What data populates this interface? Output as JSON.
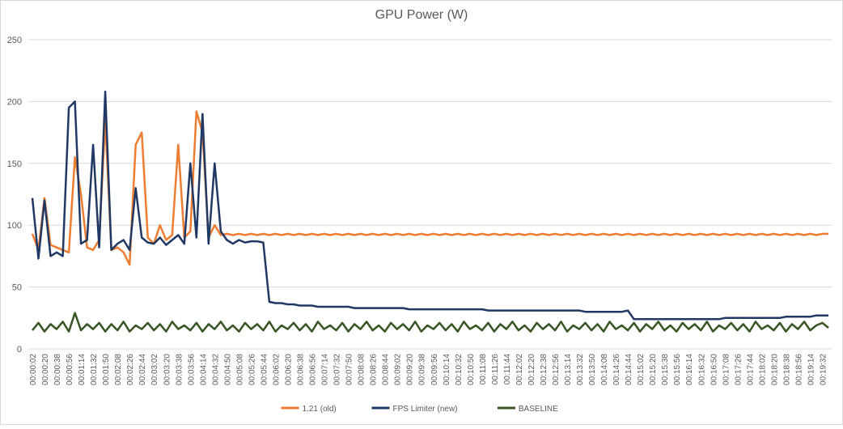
{
  "chart_data": {
    "type": "line",
    "title": "GPU Power (W)",
    "categories": [
      "00:00:02",
      null,
      "00:00:20",
      null,
      "00:00:38",
      null,
      "00:00:56",
      null,
      "00:01:14",
      null,
      "00:01:32",
      null,
      "00:01:50",
      null,
      "00:02:08",
      null,
      "00:02:26",
      null,
      "00:02:44",
      null,
      "00:03:02",
      null,
      "00:03:20",
      null,
      "00:03:38",
      null,
      "00:03:56",
      null,
      "00:04:14",
      null,
      "00:04:32",
      null,
      "00:04:50",
      null,
      "00:05:08",
      null,
      "00:05:26",
      null,
      "00:05:44",
      null,
      "00:06:02",
      null,
      "00:06:20",
      null,
      "00:06:38",
      null,
      "00:06:56",
      null,
      "00:07:14",
      null,
      "00:07:32",
      null,
      "00:07:50",
      null,
      "00:08:08",
      null,
      "00:08:26",
      null,
      "00:08:44",
      null,
      "00:09:02",
      null,
      "00:09:20",
      null,
      "00:09:38",
      null,
      "00:09:56",
      null,
      "00:10:14",
      null,
      "00:10:32",
      null,
      "00:10:50",
      null,
      "00:11:08",
      null,
      "00:11:26",
      null,
      "00:11:44",
      null,
      "00:12:02",
      null,
      "00:12:20",
      null,
      "00:12:38",
      null,
      "00:12:56",
      null,
      "00:13:14",
      null,
      "00:13:32",
      null,
      "00:13:50",
      null,
      "00:14:08",
      null,
      "00:14:26",
      null,
      "00:14:44",
      null,
      "00:15:02",
      null,
      "00:15:20",
      null,
      "00:15:38",
      null,
      "00:15:56",
      null,
      "00:16:14",
      null,
      "00:16:32",
      null,
      "00:16:50",
      null,
      "00:17:08",
      null,
      "00:17:26",
      null,
      "00:17:44",
      null,
      "00:18:02",
      null,
      "00:18:20",
      null,
      "00:18:38",
      null,
      "00:18:56",
      null,
      "00:19:14",
      null,
      "00:19:32",
      null
    ],
    "series": [
      {
        "name": "1.21 (old)",
        "color": "#ed7d31",
        "values": [
          93,
          80,
          122,
          84,
          82,
          80,
          78,
          155,
          125,
          82,
          80,
          88,
          185,
          80,
          82,
          78,
          68,
          165,
          175,
          90,
          85,
          100,
          88,
          92,
          165,
          90,
          95,
          192,
          175,
          90,
          100,
          92,
          93,
          92,
          93,
          92,
          93,
          92,
          93,
          92,
          93,
          92,
          93,
          92,
          93,
          92,
          93,
          92,
          93,
          92,
          93,
          92,
          93,
          92,
          93,
          92,
          93,
          92,
          93,
          92,
          93,
          92,
          93,
          92,
          93,
          92,
          93,
          92,
          93,
          92,
          93,
          92,
          93,
          92,
          93,
          92,
          93,
          92,
          93,
          92,
          93,
          92,
          93,
          92,
          93,
          92,
          93,
          92,
          93,
          92,
          93,
          92,
          93,
          92,
          93,
          92,
          93,
          92,
          93,
          92,
          93,
          92,
          93,
          92,
          93,
          92,
          93,
          92,
          93,
          92,
          93,
          92,
          93,
          92,
          93,
          92,
          93,
          92,
          93,
          92,
          93,
          92,
          93,
          92,
          93,
          92,
          93,
          92,
          93,
          92,
          93,
          93
        ]
      },
      {
        "name": "FPS Limiter (new)",
        "color": "#203864",
        "values": [
          122,
          73,
          120,
          75,
          78,
          75,
          195,
          200,
          85,
          88,
          165,
          82,
          208,
          80,
          85,
          88,
          80,
          130,
          90,
          86,
          85,
          90,
          84,
          88,
          92,
          85,
          150,
          90,
          190,
          85,
          150,
          95,
          88,
          85,
          88,
          86,
          87,
          87,
          86,
          38,
          37,
          37,
          36,
          36,
          35,
          35,
          35,
          34,
          34,
          34,
          34,
          34,
          34,
          33,
          33,
          33,
          33,
          33,
          33,
          33,
          33,
          33,
          32,
          32,
          32,
          32,
          32,
          32,
          32,
          32,
          32,
          32,
          32,
          32,
          32,
          31,
          31,
          31,
          31,
          31,
          31,
          31,
          31,
          31,
          31,
          31,
          31,
          31,
          31,
          31,
          31,
          30,
          30,
          30,
          30,
          30,
          30,
          30,
          31,
          24,
          24,
          24,
          24,
          24,
          24,
          24,
          24,
          24,
          24,
          24,
          24,
          24,
          24,
          24,
          25,
          25,
          25,
          25,
          25,
          25,
          25,
          25,
          25,
          25,
          26,
          26,
          26,
          26,
          26,
          27,
          27,
          27
        ]
      },
      {
        "name": "BASELINE",
        "color": "#375623",
        "values": [
          15,
          21,
          14,
          20,
          16,
          22,
          14,
          29,
          15,
          20,
          16,
          21,
          14,
          20,
          15,
          22,
          14,
          19,
          16,
          21,
          15,
          20,
          14,
          22,
          16,
          19,
          15,
          21,
          14,
          20,
          16,
          22,
          15,
          19,
          14,
          21,
          16,
          20,
          15,
          22,
          14,
          19,
          16,
          21,
          15,
          20,
          14,
          22,
          16,
          19,
          15,
          21,
          14,
          20,
          16,
          22,
          15,
          19,
          14,
          21,
          16,
          20,
          15,
          22,
          14,
          19,
          16,
          21,
          15,
          20,
          14,
          22,
          16,
          19,
          15,
          21,
          14,
          20,
          16,
          22,
          15,
          19,
          14,
          21,
          16,
          20,
          15,
          22,
          14,
          19,
          16,
          21,
          15,
          20,
          14,
          22,
          16,
          19,
          15,
          21,
          14,
          20,
          16,
          22,
          15,
          19,
          14,
          21,
          16,
          20,
          15,
          22,
          14,
          19,
          16,
          21,
          15,
          20,
          14,
          22,
          16,
          19,
          15,
          21,
          14,
          20,
          16,
          22,
          15,
          19,
          21,
          17
        ]
      }
    ],
    "ylim": [
      0,
      250
    ],
    "yticks": [
      0,
      50,
      100,
      150,
      200,
      250
    ],
    "grid": true,
    "legend": "bottom"
  }
}
